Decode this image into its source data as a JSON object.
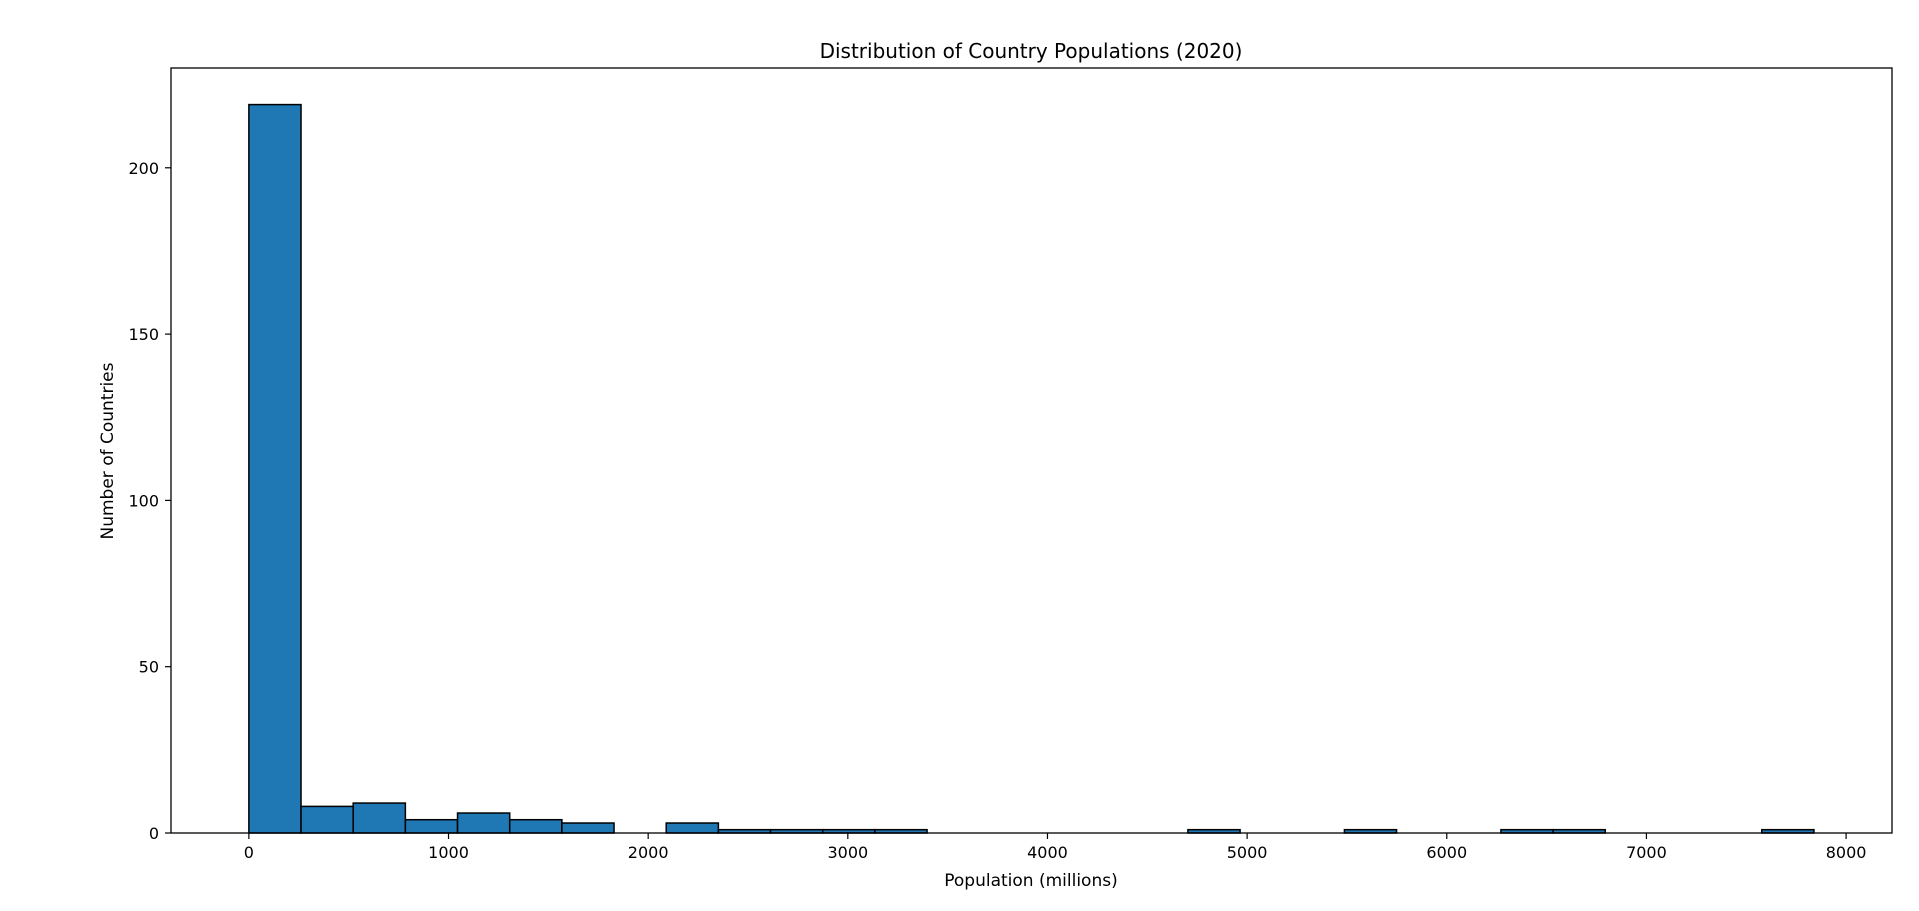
{
  "chart_data": {
    "type": "bar",
    "title": "Distribution of Country Populations (2020)",
    "xlabel": "Population (millions)",
    "ylabel": "Number of Countries",
    "xlim": [
      -390,
      8230
    ],
    "ylim": [
      0,
      230
    ],
    "xticks": [
      0,
      1000,
      2000,
      3000,
      4000,
      5000,
      6000,
      7000,
      8000
    ],
    "yticks": [
      0,
      50,
      100,
      150,
      200
    ],
    "bin_start": 0,
    "bin_width": 261.3,
    "counts": [
      219,
      8,
      9,
      4,
      6,
      4,
      3,
      0,
      3,
      1,
      1,
      1,
      1,
      0,
      0,
      0,
      0,
      0,
      1,
      0,
      0,
      1,
      0,
      0,
      1,
      1,
      0,
      0,
      0,
      1
    ],
    "grid": false,
    "colors": {
      "bar": "#1f77b4",
      "edge": "#000000"
    }
  }
}
